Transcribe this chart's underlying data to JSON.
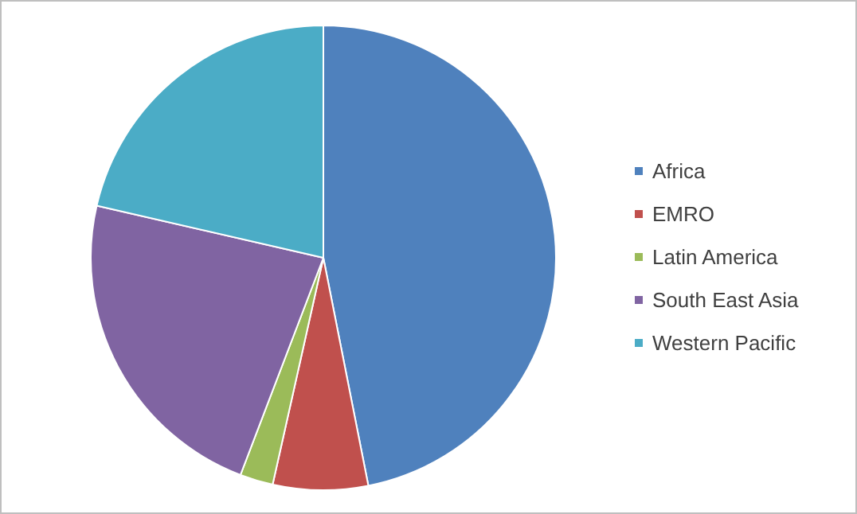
{
  "chart_data": {
    "type": "pie",
    "categories": [
      "Africa",
      "EMRO",
      "Latin America",
      "South East Asia",
      "Western Pacific"
    ],
    "values": [
      46.9,
      6.6,
      2.3,
      22.8,
      21.4
    ],
    "colors": [
      "#4f81bd",
      "#c0504d",
      "#9bbb59",
      "#8064a2",
      "#4bacc6"
    ],
    "legend": "right"
  }
}
